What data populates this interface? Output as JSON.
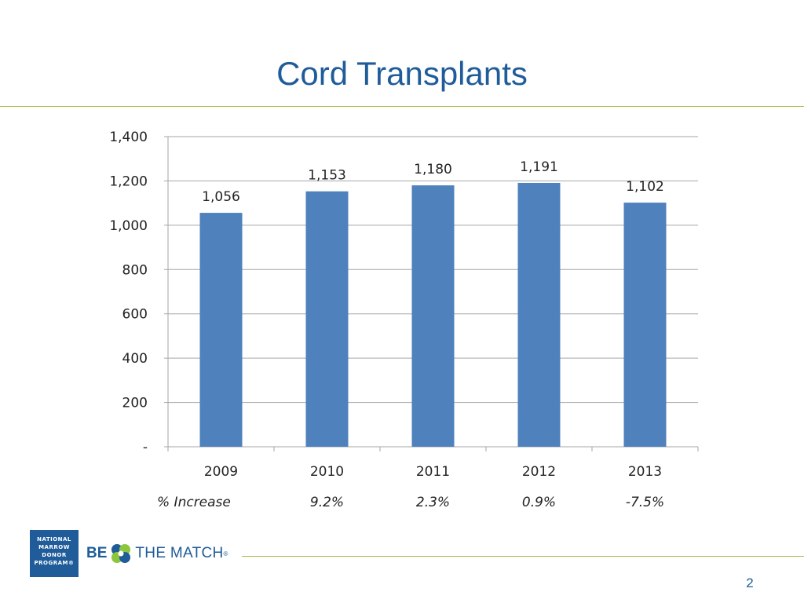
{
  "slide": {
    "title": "Cord Transplants",
    "page_number": "2"
  },
  "logos": {
    "nmdp_lines": [
      "NATIONAL",
      "MARROW",
      "DONOR",
      "PROGRAM®"
    ],
    "be_the_match": {
      "be": "BE",
      "rest": "THE MATCH",
      "reg": "®"
    }
  },
  "colors": {
    "bar": "#4f81bd",
    "title": "#1f5c99",
    "rule": "#a9b94a",
    "grid": "#a6a6a6"
  },
  "chart_data": {
    "type": "bar",
    "title": "",
    "xlabel": "",
    "ylabel": "",
    "categories": [
      "2009",
      "2010",
      "2011",
      "2012",
      "2013"
    ],
    "values": [
      1056,
      1153,
      1180,
      1191,
      1102
    ],
    "data_labels": [
      "1,056",
      "1,153",
      "1,180",
      "1,191",
      "1,102"
    ],
    "ylim": [
      0,
      1400
    ],
    "yticks": [
      0,
      200,
      400,
      600,
      800,
      1000,
      1200,
      1400
    ],
    "ytick_labels": [
      "-",
      "200",
      "400",
      "600",
      "800",
      "1,000",
      "1,200",
      "1,400"
    ],
    "grid": true,
    "legend": "none",
    "annotation_row": {
      "label": "% Increase",
      "values": [
        "9.2%",
        "2.3%",
        "0.9%",
        "-7.5%"
      ],
      "categories": [
        "2010",
        "2011",
        "2012",
        "2013"
      ]
    }
  }
}
